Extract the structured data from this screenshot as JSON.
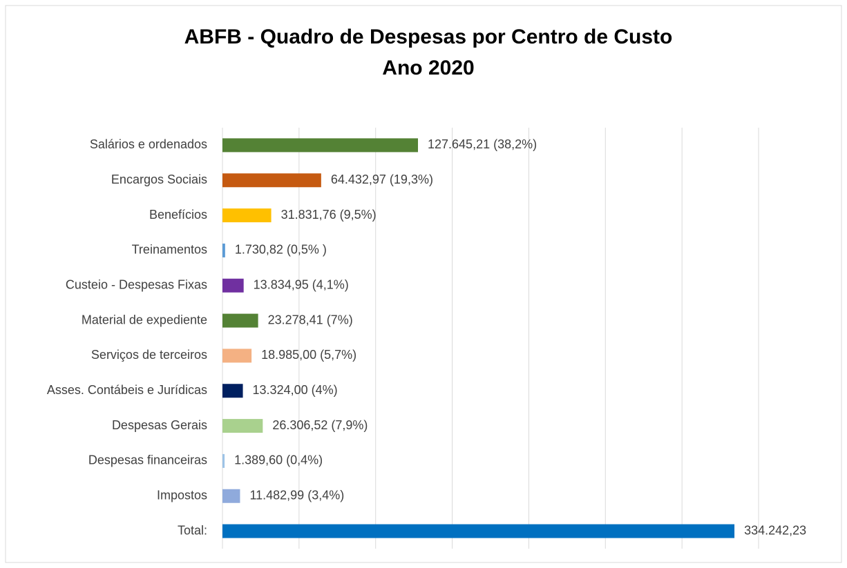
{
  "chart_data": {
    "type": "barh",
    "title": "ABFB - Quadro de Despesas por Centro de Custo",
    "subtitle": "Ano 2020",
    "categories": [
      "Salários e ordenados",
      "Encargos Sociais",
      "Benefícios",
      "Treinamentos",
      "Custeio - Despesas Fixas",
      "Material de expediente",
      "Serviços de terceiros",
      "Asses. Contábeis e Jurídicas",
      "Despesas Gerais",
      "Despesas financeiras",
      "Impostos",
      "Total:"
    ],
    "values": [
      127645.21,
      64432.97,
      31831.76,
      1730.82,
      13834.95,
      23278.41,
      18985.0,
      13324.0,
      26306.52,
      1389.6,
      11482.99,
      334242.23
    ],
    "value_labels": [
      "127.645,21 (38,2%)",
      "64.432,97 (19,3%)",
      "31.831,76 (9,5%)",
      "1.730,82 (0,5% )",
      "13.834,95 (4,1%)",
      "23.278,41 (7%)",
      "18.985,00 (5,7%)",
      "13.324,00 (4%)",
      "26.306,52 (7,9%)",
      "1.389,60 (0,4%)",
      "11.482,99 (3,4%)",
      "334.242,23"
    ],
    "colors": [
      "#548235",
      "#c55a11",
      "#ffc000",
      "#5b9bd5",
      "#7030a0",
      "#548235",
      "#f4b183",
      "#002060",
      "#a9d18e",
      "#9dc3e6",
      "#8faadc",
      "#0070c0"
    ],
    "xlim": [
      0,
      350000
    ],
    "xticks": [
      0,
      50000,
      100000,
      150000,
      200000,
      250000,
      300000,
      350000
    ],
    "grid": true
  }
}
